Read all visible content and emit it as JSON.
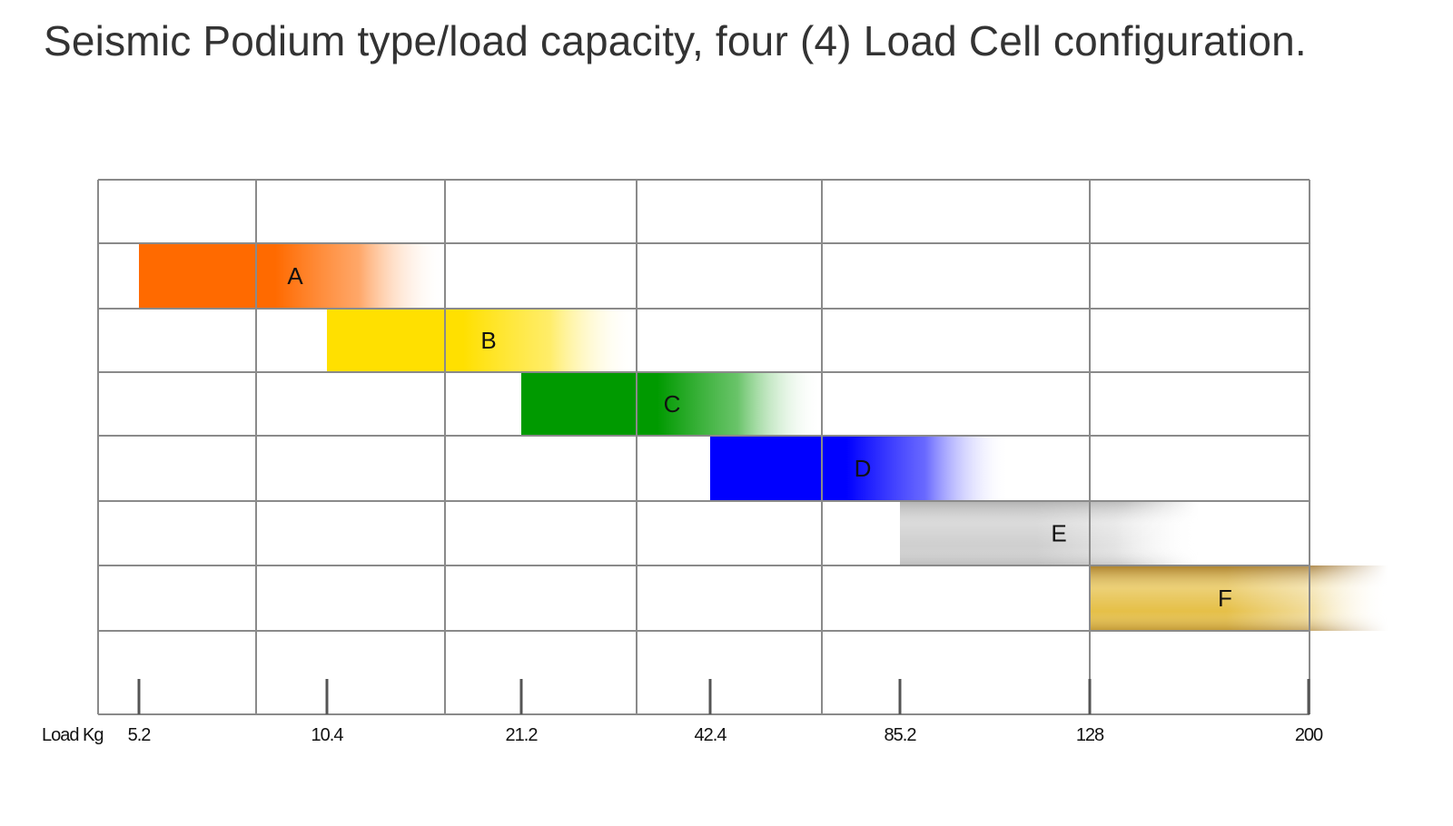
{
  "title": "Seismic Podium type/load capacity, four (4) Load Cell configuration.",
  "chart_data": {
    "type": "bar",
    "orientation": "horizontal-range",
    "title": "Seismic Podium type/load capacity, four (4) Load Cell configuration.",
    "xlabel": "Load Kg",
    "ticks": [
      "5.2",
      "10.4",
      "21.2",
      "42.4",
      "85.2",
      "128",
      "200"
    ],
    "grid": true,
    "series": [
      {
        "name": "A",
        "from": "5.2",
        "to": "21.2",
        "color": "#ff6a00"
      },
      {
        "name": "B",
        "from": "10.4",
        "to": "42.4",
        "color": "#ffe000"
      },
      {
        "name": "C",
        "from": "21.2",
        "to": "85.2",
        "color": "#009a00"
      },
      {
        "name": "D",
        "from": "42.4",
        "to": "128",
        "color": "#0000ff"
      },
      {
        "name": "E",
        "from": "85.2",
        "to": "200",
        "color": "#cfcfcf"
      },
      {
        "name": "F",
        "from": "128",
        "to": "200",
        "color": "#e6c048"
      }
    ]
  }
}
